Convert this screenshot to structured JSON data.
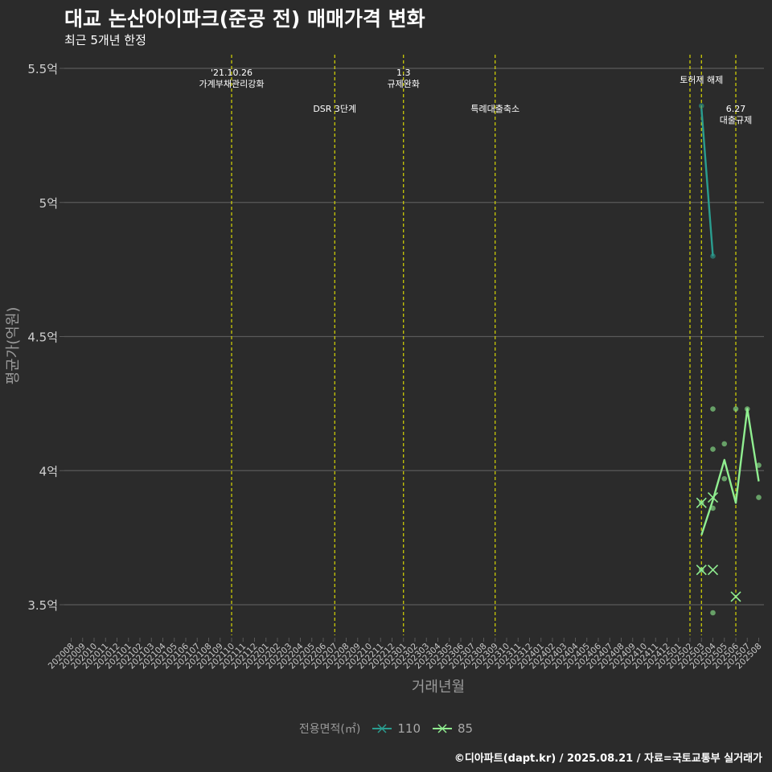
{
  "title": "대교 논산아이파크(준공 전) 매매가격 변화",
  "subtitle": "최근 5개년 한정",
  "caption": "©디아파트(dapt.kr) / 2025.08.21 / 자료=국토교통부 실거래가",
  "colors": {
    "background": "#2b2b2b",
    "grid": "#5a5a5a",
    "event_line": "#e6e600",
    "series_110": "#2a9d8f",
    "series_85": "#90ee90",
    "axis_text": "#9a9a9a"
  },
  "chart_data": {
    "type": "line",
    "title": "대교 논산아이파크(준공 전) 매매가격 변화",
    "subtitle": "최근 5개년 한정",
    "xlabel": "거래년월",
    "ylabel": "평균가(억원)",
    "categories": [
      "202008",
      "202009",
      "202010",
      "202011",
      "202012",
      "202101",
      "202102",
      "202103",
      "202104",
      "202105",
      "202106",
      "202107",
      "202108",
      "202109",
      "202110",
      "202111",
      "202112",
      "202201",
      "202202",
      "202203",
      "202204",
      "202205",
      "202206",
      "202207",
      "202208",
      "202209",
      "202210",
      "202211",
      "202212",
      "202301",
      "202302",
      "202303",
      "202304",
      "202305",
      "202306",
      "202307",
      "202308",
      "202309",
      "202310",
      "202311",
      "202312",
      "202401",
      "202402",
      "202403",
      "202404",
      "202405",
      "202406",
      "202407",
      "202408",
      "202409",
      "202410",
      "202411",
      "202412",
      "202501",
      "202502",
      "202503",
      "202504",
      "202505",
      "202506",
      "202507",
      "202508"
    ],
    "ylim": [
      3.38,
      5.55
    ],
    "yticks": [
      3.5,
      4.0,
      4.5,
      5.0,
      5.5
    ],
    "ytick_labels": [
      "3.5억",
      "4억",
      "4.5억",
      "5억",
      "5.5억"
    ],
    "grid": true,
    "legend_title": "전용면적(㎡)",
    "legend_position": "bottom",
    "series": [
      {
        "name": "110",
        "color": "#2a9d8f",
        "line": [
          [
            "202503",
            5.35
          ],
          [
            "202504",
            4.8
          ]
        ],
        "points": [
          [
            "202503",
            5.36
          ],
          [
            "202504",
            4.8
          ]
        ],
        "crosses": []
      },
      {
        "name": "85",
        "color": "#90ee90",
        "line": [
          [
            "202503",
            3.76
          ],
          [
            "202504",
            3.89
          ],
          [
            "202505",
            4.04
          ],
          [
            "202506",
            3.88
          ],
          [
            "202507",
            4.23
          ],
          [
            "202508",
            3.96
          ]
        ],
        "points": [
          [
            "202503",
            3.88
          ],
          [
            "202503",
            3.63
          ],
          [
            "202504",
            4.23
          ],
          [
            "202504",
            4.08
          ],
          [
            "202504",
            3.86
          ],
          [
            "202504",
            3.47
          ],
          [
            "202505",
            4.1
          ],
          [
            "202505",
            3.97
          ],
          [
            "202506",
            4.23
          ],
          [
            "202507",
            4.23
          ],
          [
            "202508",
            4.02
          ],
          [
            "202508",
            3.9
          ]
        ],
        "crosses": [
          [
            "202503",
            3.88
          ],
          [
            "202503",
            3.63
          ],
          [
            "202504",
            3.9
          ],
          [
            "202504",
            3.63
          ],
          [
            "202506",
            3.53
          ]
        ]
      }
    ],
    "events": [
      {
        "x": "202110",
        "lines": [
          "'21.10.26",
          "가계부채관리강화"
        ],
        "level": "top"
      },
      {
        "x": "202207",
        "lines": [
          "DSR 3단계"
        ],
        "level": "low"
      },
      {
        "x": "202301",
        "lines": [
          "1.3",
          "규제완화"
        ],
        "level": "top"
      },
      {
        "x": "202309",
        "lines": [
          "특례대출축소"
        ],
        "level": "low"
      },
      {
        "x": "202502",
        "lines": [],
        "level": "top"
      },
      {
        "x": "202503",
        "lines": [
          "토허제 해제"
        ],
        "level": "mid"
      },
      {
        "x": "202506",
        "lines": [
          "6.27",
          "대출규제"
        ],
        "level": "low"
      }
    ]
  }
}
